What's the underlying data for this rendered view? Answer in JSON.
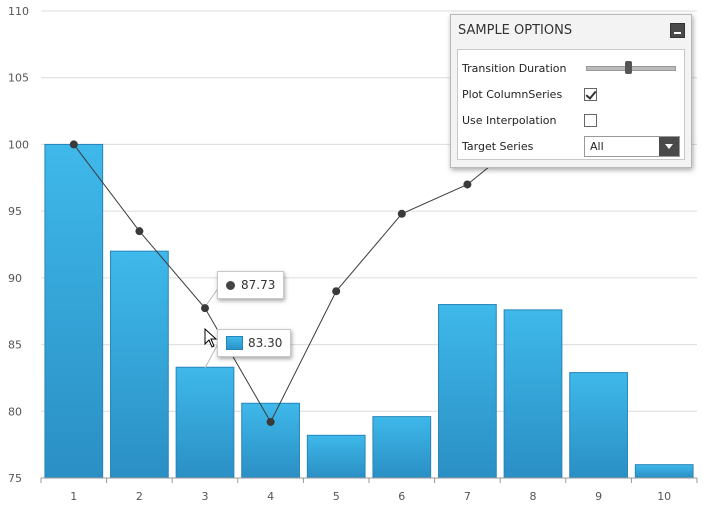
{
  "chart_data": {
    "type": "bar",
    "categories": [
      "1",
      "2",
      "3",
      "4",
      "5",
      "6",
      "7",
      "8",
      "9",
      "10"
    ],
    "series": [
      {
        "type": "column",
        "values": [
          100,
          92,
          83.3,
          80.6,
          78.2,
          79.6,
          88,
          87.6,
          82.9,
          76
        ]
      },
      {
        "type": "line",
        "values": [
          100,
          93.5,
          87.73,
          79.2,
          89,
          94.8,
          97,
          101,
          103,
          104
        ]
      }
    ],
    "yticks": [
      75,
      80,
      85,
      90,
      95,
      100,
      105,
      110
    ],
    "ylim": [
      75,
      110
    ],
    "grid": true,
    "colors": {
      "column_top": "#3fb8ea",
      "column_bottom": "#2a8fc4",
      "column_stroke": "#2685b8",
      "line": "#3a3a3a",
      "grid": "#dcdcdc"
    }
  },
  "tooltips": {
    "line_value": "87.73",
    "column_value": "83.30"
  },
  "options_panel": {
    "title": "SAMPLE OPTIONS",
    "transition_duration_label": "Transition Duration",
    "transition_duration_fraction": 0.47,
    "plot_column_series_label": "Plot ColumnSeries",
    "plot_column_series_checked": true,
    "use_interpolation_label": "Use Interpolation",
    "use_interpolation_checked": false,
    "target_series_label": "Target Series",
    "target_series_value": "All"
  }
}
